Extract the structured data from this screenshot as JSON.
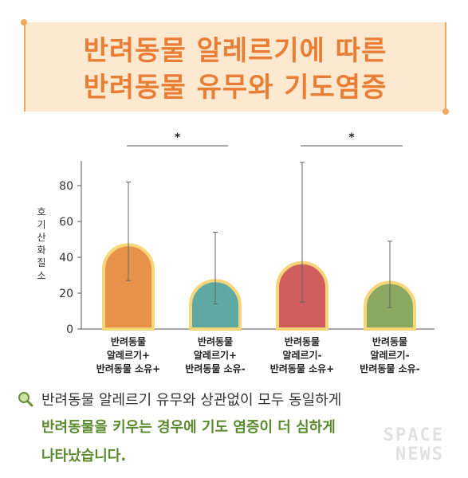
{
  "title": {
    "line1": "반려동물 알레르기에 따른",
    "line2": "반려동물 유무와 기도염증"
  },
  "colors": {
    "title_text": "#ea7d34",
    "title_bg": "#fde9d0",
    "accent": "#f0a85c",
    "bar_outline": "#f7d67a",
    "footer_green": "#5a8a2e"
  },
  "chart_data": {
    "type": "bar",
    "ylabel": "호기산화질소",
    "ylim": [
      0,
      95
    ],
    "yticks": [
      0,
      20,
      40,
      60,
      80
    ],
    "categories": [
      [
        "반려동물",
        "알레르기+",
        "반려동물 소유+"
      ],
      [
        "반려동물",
        "알레르기+",
        "반려동물 소유-"
      ],
      [
        "반려동물",
        "알레르기-",
        "반려동물 소유+"
      ],
      [
        "반려동물",
        "알레르기-",
        "반려동물 소유-"
      ]
    ],
    "values": [
      47,
      27,
      37,
      26
    ],
    "error_low": [
      27,
      14,
      15,
      12
    ],
    "error_high": [
      82,
      54,
      93,
      49
    ],
    "bar_colors": [
      "#e8914a",
      "#5fa9a3",
      "#d05e5c",
      "#8aa862"
    ],
    "significance": [
      {
        "from": 0,
        "to": 1,
        "label": "*"
      },
      {
        "from": 2,
        "to": 3,
        "label": "*"
      }
    ],
    "grid": false
  },
  "footer": {
    "line1": "반려동물 알레르기 유무와 상관없이 모두 동일하게",
    "line2": "반려동물을 키우는 경우에 기도 염증이 더 심하게",
    "line3": "나타났습니다."
  },
  "watermark": {
    "line1": "SPACE",
    "line2": "NEWS"
  }
}
